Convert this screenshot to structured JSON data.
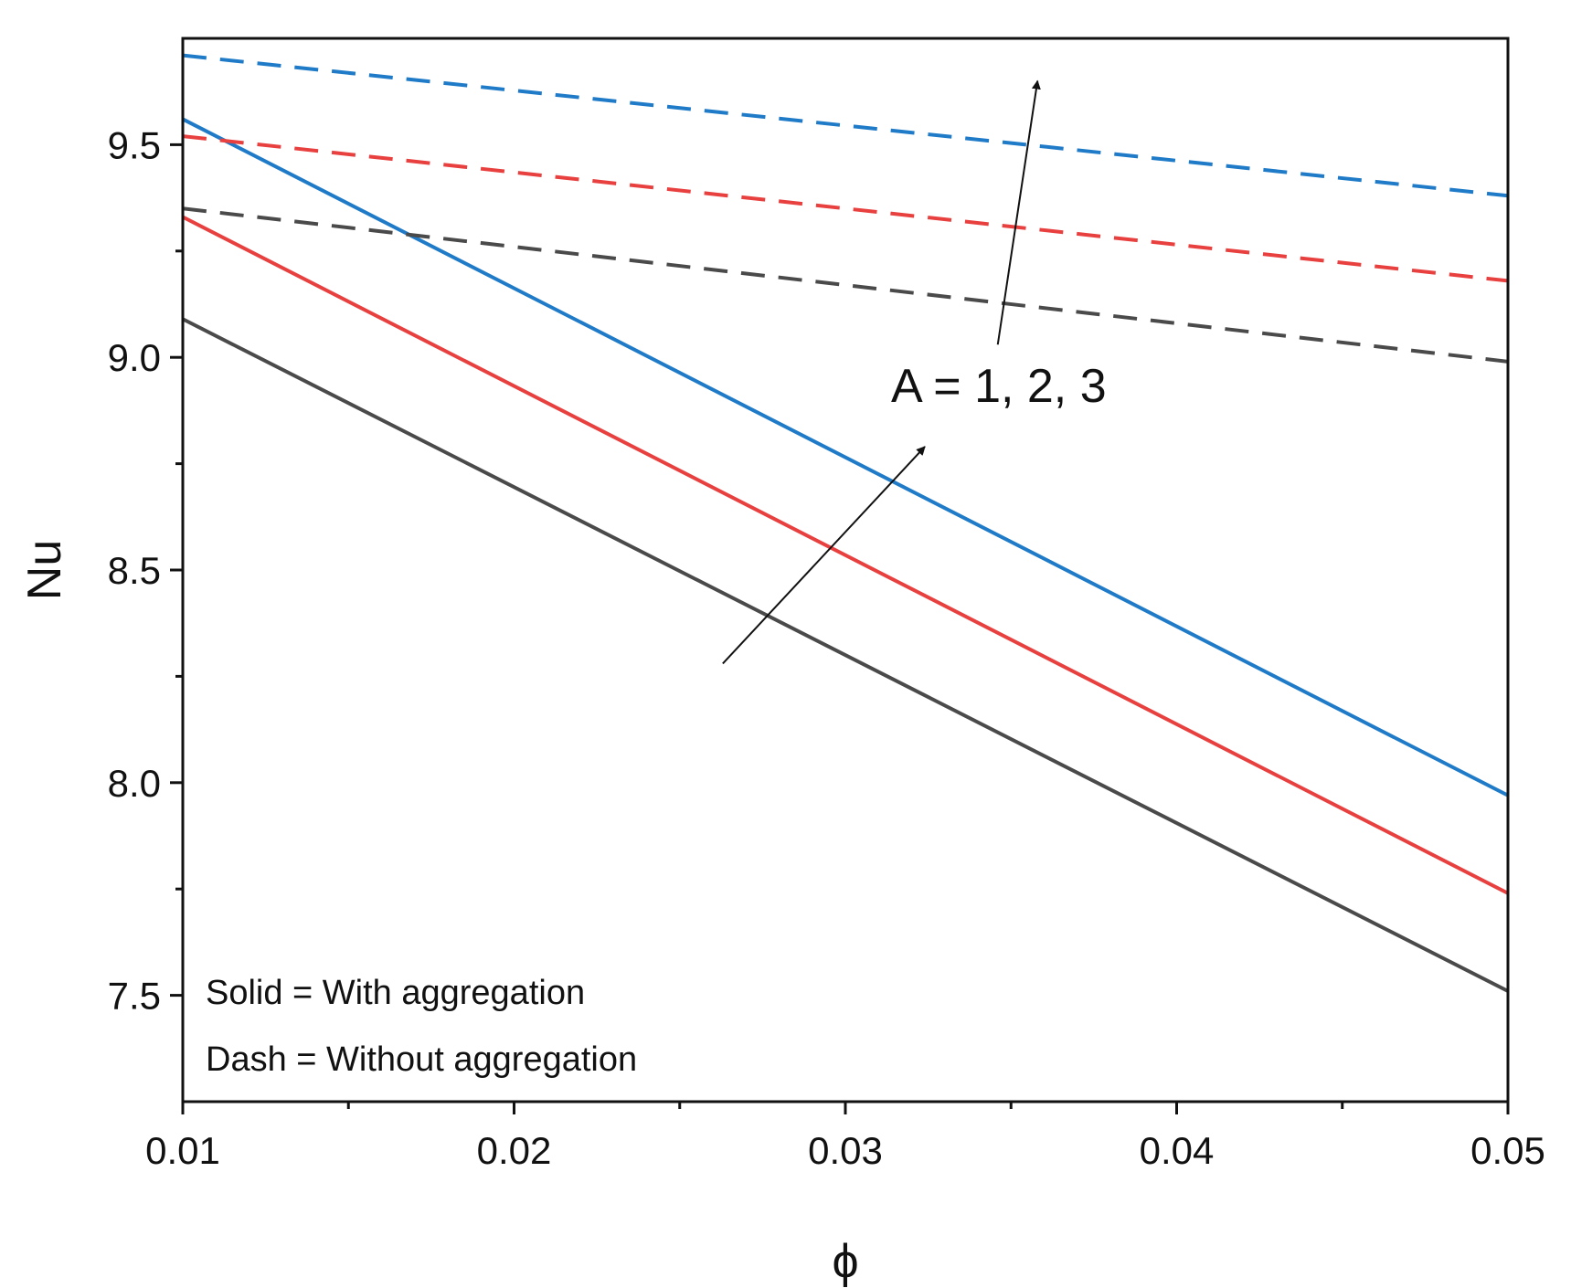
{
  "chart_data": {
    "type": "line",
    "title": "",
    "xlabel": "ϕ",
    "ylabel": "Nu",
    "xlim": [
      0.01,
      0.05
    ],
    "ylim": [
      7.25,
      9.75
    ],
    "x_ticks": [
      0.01,
      0.02,
      0.03,
      0.04,
      0.05
    ],
    "x_tick_labels": [
      "0.01",
      "0.02",
      "0.03",
      "0.04",
      "0.05"
    ],
    "x_minor_ticks": [
      0.015,
      0.025,
      0.035,
      0.045
    ],
    "y_ticks": [
      7.5,
      8.0,
      8.5,
      9.0,
      9.5
    ],
    "y_tick_labels": [
      "7.5",
      "8.0",
      "8.5",
      "9.0",
      "9.5"
    ],
    "y_minor_ticks": [
      7.75,
      8.25,
      8.75,
      9.25
    ],
    "grid": false,
    "x": [
      0.01,
      0.05
    ],
    "series": [
      {
        "name": "A = 1, with aggregation",
        "style": "solid",
        "color": "#4a4a4a",
        "values": [
          9.09,
          7.51
        ]
      },
      {
        "name": "A = 2, with aggregation",
        "style": "solid",
        "color": "#e8403f",
        "values": [
          9.33,
          7.74
        ]
      },
      {
        "name": "A = 3, with aggregation",
        "style": "solid",
        "color": "#1f7bc8",
        "values": [
          9.56,
          7.97
        ]
      },
      {
        "name": "A = 1, without aggregation",
        "style": "dash",
        "color": "#4a4a4a",
        "values": [
          9.35,
          8.99
        ]
      },
      {
        "name": "A = 2, without aggregation",
        "style": "dash",
        "color": "#e8403f",
        "values": [
          9.52,
          9.18
        ]
      },
      {
        "name": "A = 3, without aggregation",
        "style": "dash",
        "color": "#1f7bc8",
        "values": [
          9.71,
          9.38
        ]
      }
    ],
    "annotations": {
      "parameter_label": "A = 1, 2, 3",
      "arrows": [
        {
          "from": [
            0.0263,
            8.28
          ],
          "to": [
            0.0324,
            8.79
          ]
        },
        {
          "from": [
            0.0346,
            9.03
          ],
          "to": [
            0.0358,
            9.65
          ]
        }
      ]
    },
    "legend": {
      "placement": "bottom-left",
      "lines": [
        "Solid = With aggregation",
        "Dash = Without aggregation"
      ]
    }
  }
}
